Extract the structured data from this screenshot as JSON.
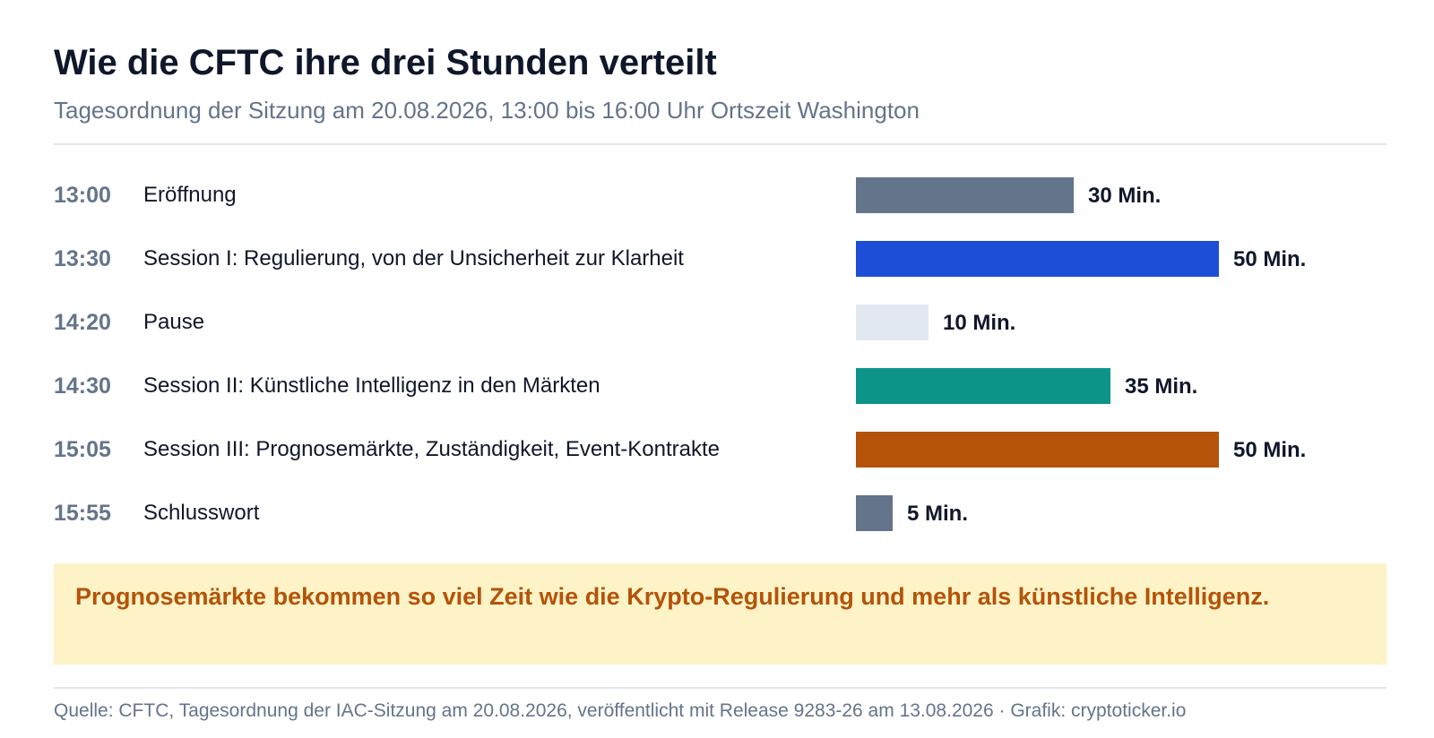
{
  "title": "Wie die CFTC ihre drei Stunden verteilt",
  "subtitle": "Tagesordnung der Sitzung am 20.08.2026, 13:00 bis 16:00 Uhr Ortszeit Washington",
  "chart_data": {
    "type": "bar",
    "orientation": "horizontal",
    "unit_suffix": " Min.",
    "rows": [
      {
        "time": "13:00",
        "label": "Eröffnung",
        "value": 30,
        "color": "#64748b"
      },
      {
        "time": "13:30",
        "label": "Session I: Regulierung, von der Unsicherheit zur Klarheit",
        "value": 50,
        "color": "#1d4ed8"
      },
      {
        "time": "14:20",
        "label": "Pause",
        "value": 10,
        "color": "#e2e8f0"
      },
      {
        "time": "14:30",
        "label": "Session II: Künstliche Intelligenz in den Märkten",
        "value": 35,
        "color": "#0d9488"
      },
      {
        "time": "15:05",
        "label": "Session III: Prognosemärkte, Zuständigkeit, Event-Kontrakte",
        "value": 50,
        "color": "#b45309"
      },
      {
        "time": "15:55",
        "label": "Schlusswort",
        "value": 5,
        "color": "#64748b"
      }
    ],
    "value_labels": [
      "30 Min.",
      "50 Min.",
      "10 Min.",
      "35 Min.",
      "50 Min.",
      "5 Min."
    ]
  },
  "callout": "Prognosemärkte bekommen so viel Zeit wie die Krypto-Regulierung und mehr als künstliche Intelligenz.",
  "source": "Quelle: CFTC, Tagesordnung der IAC-Sitzung am 20.08.2026, veröffentlicht mit Release 9283-26 am 13.08.2026 · Grafik: cryptoticker.io"
}
